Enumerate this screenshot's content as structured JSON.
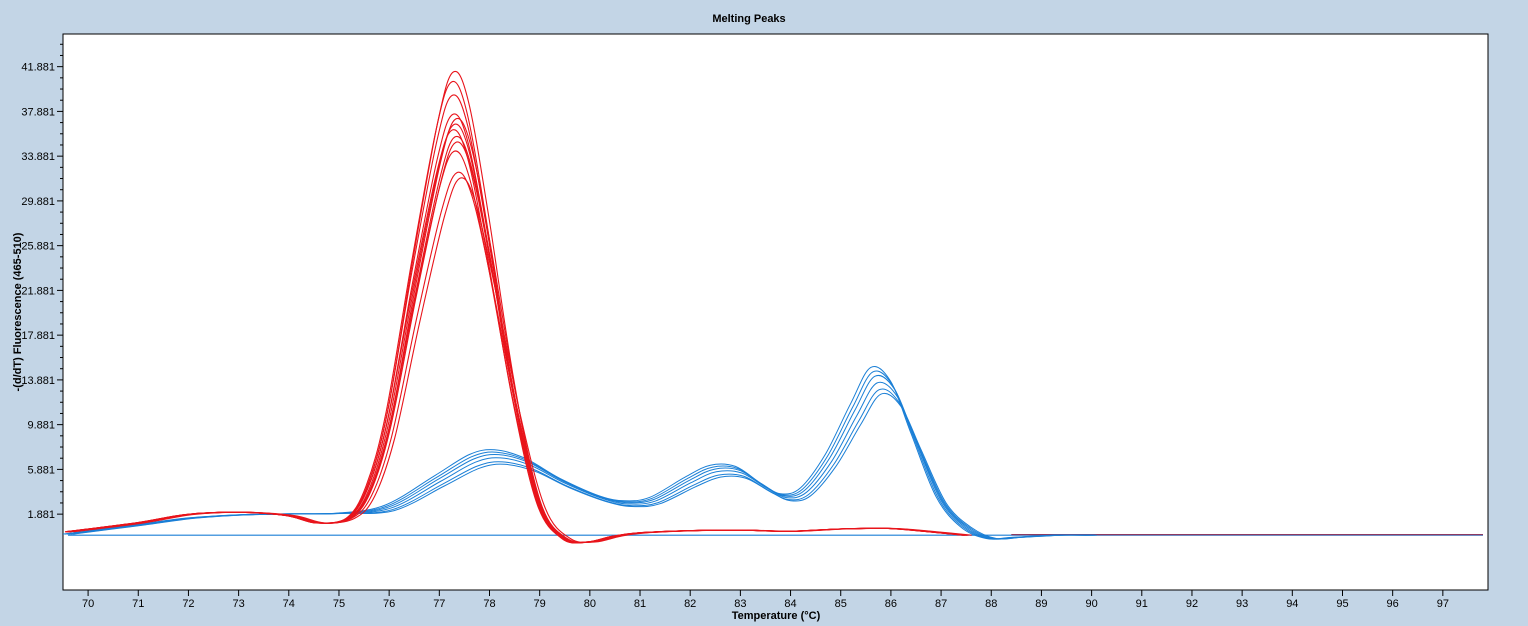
{
  "chart_data": {
    "type": "line",
    "title": "Melting Peaks",
    "xlabel": "Temperature (°C)",
    "ylabel": "-(d/dT) Fluorescence (465-510)",
    "xlim": [
      69.5,
      97.9
    ],
    "ylim": [
      -4.9,
      44.8
    ],
    "x_ticks": [
      "70",
      "71",
      "72",
      "73",
      "74",
      "75",
      "76",
      "77",
      "78",
      "79",
      "80",
      "81",
      "82",
      "83",
      "84",
      "85",
      "86",
      "87",
      "88",
      "89",
      "90",
      "91",
      "92",
      "93",
      "94",
      "95",
      "96",
      "97"
    ],
    "y_ticks": [
      "1.881",
      "5.881",
      "9.881",
      "13.881",
      "17.881",
      "21.881",
      "25.881",
      "29.881",
      "33.881",
      "37.881",
      "41.881"
    ],
    "grid": false,
    "legend": "none",
    "colors": {
      "red": "#e8141b",
      "blue": "#1a7fd6",
      "baseline": "#1a7fd6",
      "tail": "#8b3a62"
    },
    "series": [
      {
        "color": "#e8141b",
        "replicates": [
          {
            "peak": 41.4,
            "t": 77.35
          },
          {
            "peak": 40.5,
            "t": 77.3
          },
          {
            "peak": 39.3,
            "t": 77.3
          },
          {
            "peak": 37.6,
            "t": 77.3
          },
          {
            "peak": 37.2,
            "t": 77.35
          },
          {
            "peak": 36.7,
            "t": 77.3
          },
          {
            "peak": 36.2,
            "t": 77.25
          },
          {
            "peak": 35.6,
            "t": 77.3
          },
          {
            "peak": 35.1,
            "t": 77.3
          },
          {
            "peak": 34.3,
            "t": 77.25
          },
          {
            "peak": 32.4,
            "t": 77.3
          },
          {
            "peak": 31.9,
            "t": 77.35
          }
        ],
        "points": [
          [
            69.6,
            0.3
          ],
          [
            71.0,
            1.1
          ],
          [
            72.0,
            1.85
          ],
          [
            73.0,
            2.05
          ],
          [
            74.0,
            1.75
          ],
          [
            74.6,
            1.1
          ],
          [
            75.2,
            1.5
          ],
          [
            75.6,
            4.0
          ],
          [
            76.0,
            10.0
          ],
          [
            76.5,
            22.0
          ],
          [
            77.0,
            33.0
          ],
          [
            77.3,
            36.8
          ],
          [
            77.6,
            34.5
          ],
          [
            78.0,
            25.5
          ],
          [
            78.5,
            12.5
          ],
          [
            79.0,
            2.8
          ],
          [
            79.5,
            -0.3
          ],
          [
            80.0,
            -0.6
          ],
          [
            80.5,
            -0.1
          ],
          [
            81.0,
            0.2
          ],
          [
            82.0,
            0.4
          ],
          [
            83.0,
            0.45
          ],
          [
            84.0,
            0.35
          ],
          [
            85.0,
            0.55
          ],
          [
            86.0,
            0.6
          ],
          [
            86.8,
            0.3
          ],
          [
            87.5,
            0.0
          ]
        ]
      },
      {
        "color": "#1a7fd6",
        "replicates": [
          {
            "peak": 15.0,
            "amp": 1.06
          },
          {
            "peak": 14.6,
            "amp": 1.03
          },
          {
            "peak": 14.2,
            "amp": 1.0
          },
          {
            "peak": 13.6,
            "amp": 0.96
          },
          {
            "peak": 13.0,
            "amp": 0.91
          },
          {
            "peak": 12.6,
            "amp": 0.88
          }
        ],
        "points": [
          [
            69.6,
            0.1
          ],
          [
            71.0,
            0.9
          ],
          [
            72.0,
            1.5
          ],
          [
            73.0,
            1.8
          ],
          [
            74.0,
            1.9
          ],
          [
            75.0,
            1.95
          ],
          [
            76.0,
            2.5
          ],
          [
            77.0,
            5.0
          ],
          [
            77.7,
            6.8
          ],
          [
            78.2,
            7.2
          ],
          [
            78.8,
            6.5
          ],
          [
            79.5,
            4.8
          ],
          [
            80.3,
            3.3
          ],
          [
            80.8,
            2.9
          ],
          [
            81.3,
            3.2
          ],
          [
            82.0,
            4.9
          ],
          [
            82.5,
            5.9
          ],
          [
            83.0,
            5.8
          ],
          [
            83.5,
            4.4
          ],
          [
            83.9,
            3.5
          ],
          [
            84.3,
            4.0
          ],
          [
            84.8,
            6.8
          ],
          [
            85.3,
            11.0
          ],
          [
            85.7,
            14.0
          ],
          [
            86.1,
            12.8
          ],
          [
            86.5,
            8.5
          ],
          [
            87.0,
            3.2
          ],
          [
            87.5,
            0.7
          ],
          [
            88.0,
            -0.3
          ],
          [
            88.5,
            -0.2
          ],
          [
            89.3,
            0.0
          ],
          [
            90.0,
            0.0
          ]
        ]
      },
      {
        "name": "",
        "color": "#1a7fd6",
        "points": [
          [
            69.6,
            0.0
          ],
          [
            97.8,
            0.0
          ]
        ]
      },
      {
        "color": "#8b3a62",
        "points": [
          [
            88.4,
            0.05
          ],
          [
            97.8,
            0.05
          ]
        ]
      }
    ]
  }
}
